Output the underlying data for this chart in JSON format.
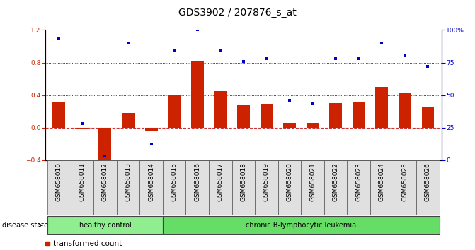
{
  "title": "GDS3902 / 207876_s_at",
  "samples": [
    "GSM658010",
    "GSM658011",
    "GSM658012",
    "GSM658013",
    "GSM658014",
    "GSM658015",
    "GSM658016",
    "GSM658017",
    "GSM658018",
    "GSM658019",
    "GSM658020",
    "GSM658021",
    "GSM658022",
    "GSM658023",
    "GSM658024",
    "GSM658025",
    "GSM658026"
  ],
  "transformed_count": [
    0.32,
    -0.02,
    -0.55,
    0.18,
    -0.04,
    0.4,
    0.82,
    0.45,
    0.28,
    0.29,
    0.06,
    0.06,
    0.3,
    0.32,
    0.5,
    0.42,
    0.25
  ],
  "percentile_rank": [
    94,
    28,
    3,
    90,
    12,
    84,
    100,
    84,
    76,
    78,
    46,
    44,
    78,
    78,
    90,
    80,
    72
  ],
  "group_labels": [
    "healthy control",
    "chronic B-lymphocytic leukemia"
  ],
  "healthy_count": 5,
  "leukemia_count": 12,
  "bar_color": "#cc2200",
  "dot_color": "#0000cc",
  "zero_line_color": "#cc3333",
  "hc_color": "#90ee90",
  "leuk_color": "#66dd66",
  "ylim_left": [
    -0.4,
    1.2
  ],
  "ylim_right": [
    0,
    100
  ],
  "yticks_left": [
    -0.4,
    0.0,
    0.4,
    0.8,
    1.2
  ],
  "yticks_right": [
    0,
    25,
    50,
    75,
    100
  ],
  "hlines": [
    0.4,
    0.8
  ],
  "disease_state_label": "disease state",
  "title_fontsize": 10,
  "tick_fontsize": 6.5,
  "legend_fontsize": 7.5
}
